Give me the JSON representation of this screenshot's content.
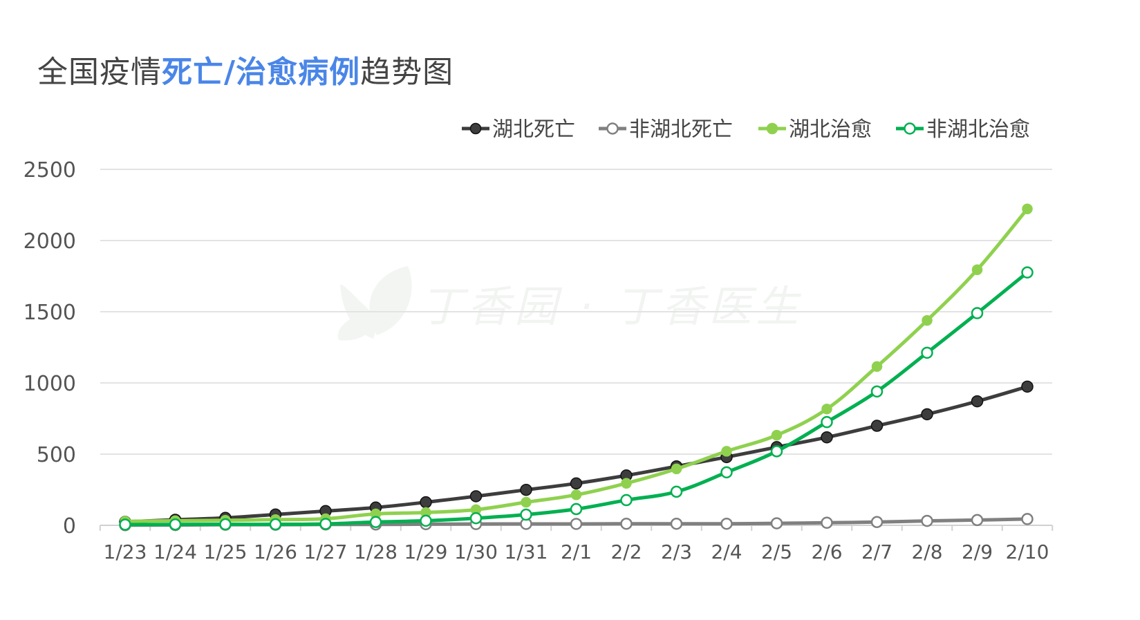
{
  "title": {
    "part1": "全国疫情",
    "part2": "死亡/治愈病例",
    "part3": "趋势图"
  },
  "watermark": "丁香园 · 丁香医生",
  "chart_data": {
    "type": "line",
    "categories": [
      "1/23",
      "1/24",
      "1/25",
      "1/26",
      "1/27",
      "1/28",
      "1/29",
      "1/30",
      "1/31",
      "2/1",
      "2/2",
      "2/3",
      "2/4",
      "2/5",
      "2/6",
      "2/7",
      "2/8",
      "2/9",
      "2/10"
    ],
    "ylim": [
      0,
      2500
    ],
    "yticks": [
      0,
      500,
      1000,
      1500,
      2000,
      2500
    ],
    "grid": true,
    "legend_position": "top-right",
    "series": [
      {
        "name": "湖北死亡",
        "color": "#3d3d3d",
        "marker": "filled",
        "values": [
          24,
          39,
          52,
          76,
          100,
          125,
          162,
          204,
          249,
          294,
          350,
          414,
          479,
          549,
          618,
          699,
          780,
          871,
          974
        ]
      },
      {
        "name": "非湖北死亡",
        "color": "#808080",
        "marker": "hollow",
        "values": [
          1,
          2,
          4,
          4,
          6,
          6,
          8,
          9,
          10,
          10,
          11,
          11,
          11,
          14,
          18,
          23,
          31,
          37,
          44
        ]
      },
      {
        "name": "湖北治愈",
        "color": "#8fd14f",
        "marker": "filled",
        "values": [
          28,
          32,
          35,
          40,
          46,
          80,
          90,
          110,
          162,
          214,
          295,
          396,
          520,
          633,
          817,
          1115,
          1439,
          1795,
          2222
        ]
      },
      {
        "name": "非湖北治愈",
        "color": "#00b050",
        "marker": "hollow",
        "values": [
          5,
          6,
          7,
          7,
          10,
          23,
          32,
          50,
          75,
          114,
          177,
          236,
          372,
          520,
          725,
          940,
          1212,
          1490,
          1776
        ]
      }
    ]
  }
}
